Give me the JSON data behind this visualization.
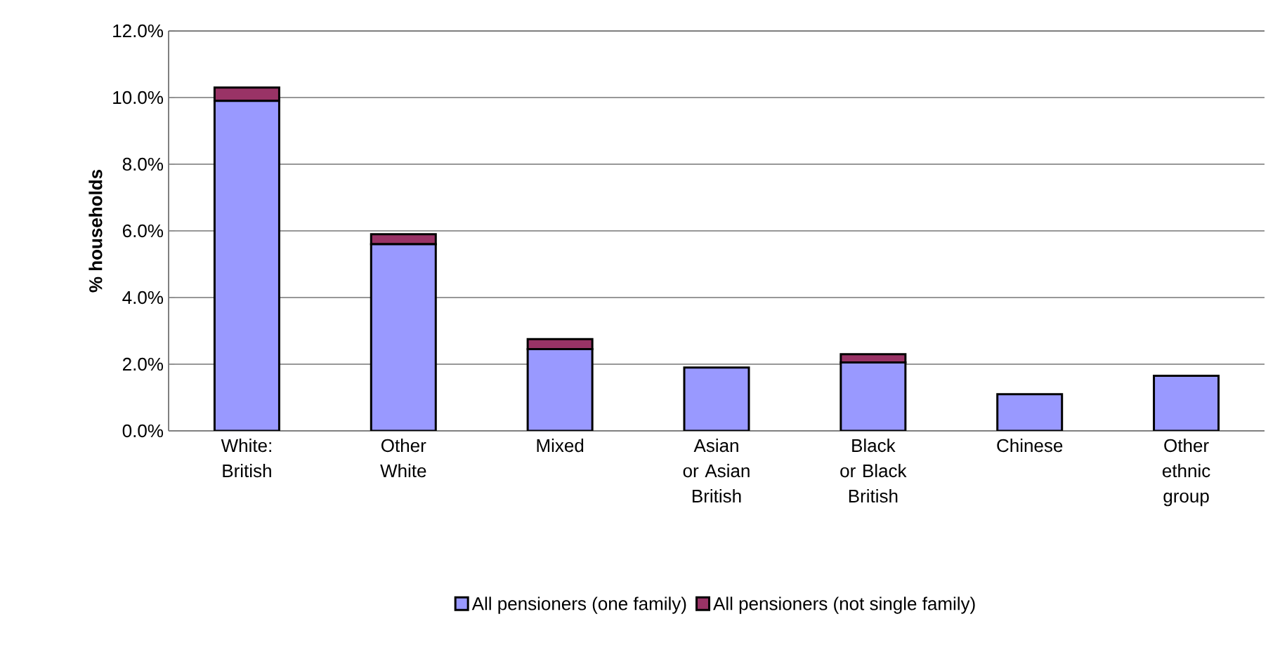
{
  "chart_data": {
    "type": "bar",
    "stacked": true,
    "ylabel": "% households",
    "categories": [
      "White: British",
      "Other White",
      "Mixed",
      "Asian or Asian British",
      "Black or Black British",
      "Chinese",
      "Other ethnic group"
    ],
    "series": [
      {
        "name": "All pensioners (one family)",
        "color": "#9999ff",
        "values": [
          9.9,
          5.6,
          2.45,
          1.9,
          2.05,
          1.1,
          1.65
        ]
      },
      {
        "name": "All pensioners (not single family)",
        "color": "#993366",
        "values": [
          0.4,
          0.3,
          0.3,
          0,
          0.25,
          0,
          0
        ]
      }
    ],
    "ylim": [
      0,
      12
    ],
    "yticks": [
      {
        "value": 0,
        "label": "0.0%"
      },
      {
        "value": 2,
        "label": "2.0%"
      },
      {
        "value": 4,
        "label": "4.0%"
      },
      {
        "value": 6,
        "label": "6.0%"
      },
      {
        "value": 8,
        "label": "8.0%"
      },
      {
        "value": 10,
        "label": "10.0%"
      },
      {
        "value": 12,
        "label": "12.0%"
      }
    ],
    "grid": "y",
    "legend": "bottom"
  }
}
